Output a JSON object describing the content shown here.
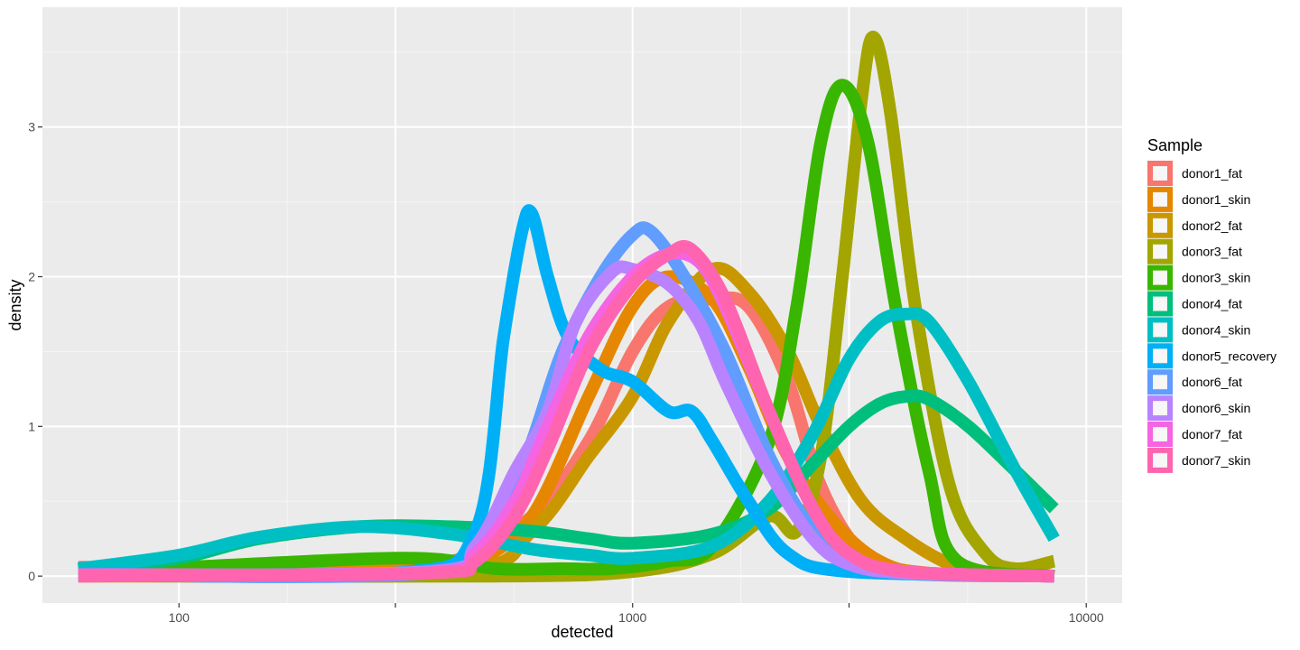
{
  "chart_data": {
    "type": "line",
    "title": "",
    "xlabel": "detected",
    "ylabel": "density",
    "x_scale": "log10",
    "xlim": [
      50,
      12000
    ],
    "ylim": [
      -0.18,
      3.8
    ],
    "x_ticks": [
      100,
      300,
      1000,
      3000,
      10000
    ],
    "x_tick_labels": [
      "100",
      "",
      "1000",
      "",
      "10000"
    ],
    "y_ticks": [
      0,
      1,
      2,
      3
    ],
    "y_tick_labels": [
      "0",
      "1",
      "2",
      "3"
    ],
    "grid": true,
    "legend": {
      "title": "Sample",
      "position": "right"
    },
    "series": [
      {
        "name": "donor1_fat",
        "color": "#F8766D",
        "x": [
          60,
          200,
          400,
          600,
          800,
          1000,
          1200,
          1500,
          1800,
          2200,
          2600,
          3200,
          4000,
          8500
        ],
        "y": [
          0.06,
          0.06,
          0.1,
          0.4,
          0.9,
          1.5,
          1.8,
          1.85,
          1.8,
          1.3,
          0.6,
          0.15,
          0.02,
          0
        ]
      },
      {
        "name": "donor1_skin",
        "color": "#E58700",
        "x": [
          60,
          200,
          350,
          450,
          600,
          800,
          1000,
          1200,
          1500,
          1800,
          2200,
          2800,
          3500,
          4500,
          8500
        ],
        "y": [
          0.02,
          0.03,
          0.08,
          0.1,
          0.4,
          1.2,
          1.8,
          2.0,
          1.85,
          1.4,
          0.8,
          0.35,
          0.1,
          0.02,
          0
        ]
      },
      {
        "name": "donor2_fat",
        "color": "#C99800",
        "x": [
          60,
          400,
          600,
          800,
          1000,
          1200,
          1500,
          1800,
          2200,
          2600,
          3200,
          4000,
          5000,
          6000,
          8500
        ],
        "y": [
          0.01,
          0.03,
          0.3,
          0.8,
          1.2,
          1.7,
          2.05,
          1.9,
          1.5,
          1.0,
          0.5,
          0.25,
          0.08,
          0.02,
          0
        ]
      },
      {
        "name": "donor3_fat",
        "color": "#A3A500",
        "x": [
          60,
          500,
          1000,
          1500,
          2000,
          2300,
          2600,
          2900,
          3200,
          3400,
          3700,
          4200,
          5000,
          6000,
          7000,
          8500
        ],
        "y": [
          0,
          0,
          0.03,
          0.15,
          0.4,
          0.3,
          0.8,
          2.0,
          3.2,
          3.6,
          3.1,
          1.8,
          0.6,
          0.15,
          0.05,
          0.1
        ]
      },
      {
        "name": "donor3_skin",
        "color": "#39B600",
        "x": [
          60,
          300,
          500,
          700,
          900,
          1200,
          1500,
          2000,
          2300,
          2600,
          2900,
          3300,
          3800,
          4500,
          5200,
          8500
        ],
        "y": [
          0.02,
          0.12,
          0.05,
          0.05,
          0.05,
          0.1,
          0.2,
          0.9,
          1.8,
          2.9,
          3.28,
          2.9,
          1.8,
          0.7,
          0.1,
          0
        ]
      },
      {
        "name": "donor4_fat",
        "color": "#00BF7D",
        "x": [
          60,
          100,
          150,
          250,
          400,
          600,
          800,
          1000,
          1500,
          2000,
          2500,
          3000,
          3500,
          4000,
          4500,
          5500,
          7000,
          8500
        ],
        "y": [
          0.05,
          0.12,
          0.25,
          0.33,
          0.33,
          0.3,
          0.25,
          0.22,
          0.28,
          0.45,
          0.75,
          1.0,
          1.15,
          1.2,
          1.18,
          1.0,
          0.7,
          0.45
        ]
      },
      {
        "name": "donor4_skin",
        "color": "#00BFC4",
        "x": [
          60,
          100,
          150,
          250,
          400,
          600,
          800,
          1000,
          1500,
          2000,
          2500,
          3000,
          3500,
          4000,
          4500,
          5500,
          7000,
          8500
        ],
        "y": [
          0.05,
          0.14,
          0.26,
          0.33,
          0.28,
          0.18,
          0.14,
          0.12,
          0.2,
          0.5,
          0.95,
          1.45,
          1.7,
          1.75,
          1.7,
          1.3,
          0.7,
          0.25
        ]
      },
      {
        "name": "donor5_recovery",
        "color": "#00B0F6",
        "x": [
          60,
          300,
          450,
          520,
          570,
          600,
          650,
          720,
          850,
          1000,
          1200,
          1350,
          1500,
          1800,
          2200,
          3000,
          8500
        ],
        "y": [
          0.01,
          0.02,
          0.3,
          1.6,
          2.3,
          2.42,
          2.0,
          1.6,
          1.38,
          1.3,
          1.1,
          1.1,
          0.9,
          0.5,
          0.15,
          0.03,
          0
        ]
      },
      {
        "name": "donor6_fat",
        "color": "#619CFF",
        "x": [
          60,
          350,
          500,
          600,
          700,
          850,
          1000,
          1100,
          1300,
          1600,
          2000,
          2500,
          3000,
          4000,
          8500
        ],
        "y": [
          0.01,
          0.02,
          0.3,
          0.9,
          1.5,
          2.0,
          2.28,
          2.3,
          2.0,
          1.5,
          0.8,
          0.3,
          0.1,
          0.02,
          0
        ]
      },
      {
        "name": "donor6_skin",
        "color": "#B983FF",
        "x": [
          60,
          350,
          450,
          550,
          650,
          750,
          900,
          1000,
          1200,
          1400,
          1600,
          2000,
          2500,
          3000,
          4000,
          8500
        ],
        "y": [
          0.01,
          0.03,
          0.2,
          0.7,
          1.1,
          1.7,
          2.03,
          2.05,
          1.95,
          1.7,
          1.3,
          0.7,
          0.25,
          0.08,
          0.02,
          0
        ]
      },
      {
        "name": "donor7_fat",
        "color": "#F564E3",
        "x": [
          60,
          350,
          450,
          550,
          650,
          800,
          1000,
          1200,
          1400,
          1600,
          2000,
          2500,
          3000,
          4000,
          8500
        ],
        "y": [
          0.01,
          0.02,
          0.15,
          0.5,
          1.0,
          1.6,
          2.0,
          2.15,
          2.1,
          1.8,
          1.1,
          0.45,
          0.15,
          0.03,
          0
        ]
      },
      {
        "name": "donor7_skin",
        "color": "#FF64B0",
        "x": [
          60,
          350,
          450,
          550,
          650,
          800,
          1000,
          1200,
          1350,
          1600,
          2000,
          2500,
          3000,
          4000,
          8500
        ],
        "y": [
          0,
          0.02,
          0.1,
          0.4,
          0.85,
          1.5,
          1.95,
          2.15,
          2.18,
          1.85,
          1.1,
          0.45,
          0.15,
          0.03,
          0
        ]
      }
    ]
  }
}
